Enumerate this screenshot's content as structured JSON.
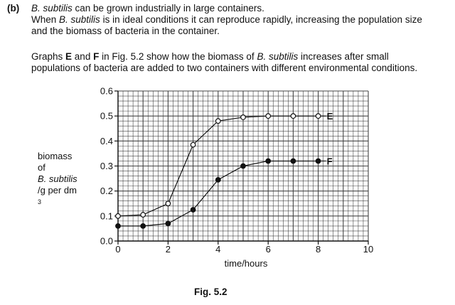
{
  "question": {
    "label": "(b)",
    "p1": {
      "s1_species": "B. subtilis",
      "s1_rest": " can be grown industrially in large containers.",
      "s2_pre": "When ",
      "s2_species": "B. subtilis",
      "s2_rest": " is in ideal conditions it can reproduce rapidly, increasing the population size",
      "s3": "and the biomass of bacteria in the container."
    },
    "p2": {
      "pre": "Graphs ",
      "graph_e": "E",
      "and": " and ",
      "graph_f": "F",
      "mid": " in Fig. 5.2 show how the biomass of ",
      "species": "B. subtilis",
      "post": " increases after small",
      "line2": "populations of bacteria are added to two containers with different environmental conditions."
    }
  },
  "ylabel": {
    "line1": "biomass",
    "line2_pre": "of ",
    "line2_species": "B. subtilis",
    "line3": "/g per dm",
    "line3_sup": "3"
  },
  "figure_caption": "Fig. 5.2",
  "chart_data": {
    "type": "line",
    "xlabel": "time / hours",
    "xlim": [
      0,
      10
    ],
    "ylim": [
      0,
      0.6
    ],
    "xticks": [
      "0",
      "2",
      "4",
      "6",
      "8",
      "10"
    ],
    "yticks": [
      "0.0",
      "0.1",
      "0.2",
      "0.3",
      "0.4",
      "0.5",
      "0.6"
    ],
    "grid": true,
    "series": [
      {
        "name": "E",
        "marker": "open-circle",
        "x": [
          0,
          1,
          2,
          3,
          4,
          5,
          6,
          7,
          8
        ],
        "y": [
          0.1,
          0.105,
          0.15,
          0.385,
          0.48,
          0.495,
          0.5,
          0.5,
          0.5
        ]
      },
      {
        "name": "F",
        "marker": "filled-circle",
        "x": [
          0,
          1,
          2,
          3,
          4,
          5,
          6,
          7,
          8
        ],
        "y": [
          0.06,
          0.06,
          0.07,
          0.125,
          0.245,
          0.3,
          0.32,
          0.32,
          0.32
        ]
      }
    ]
  }
}
